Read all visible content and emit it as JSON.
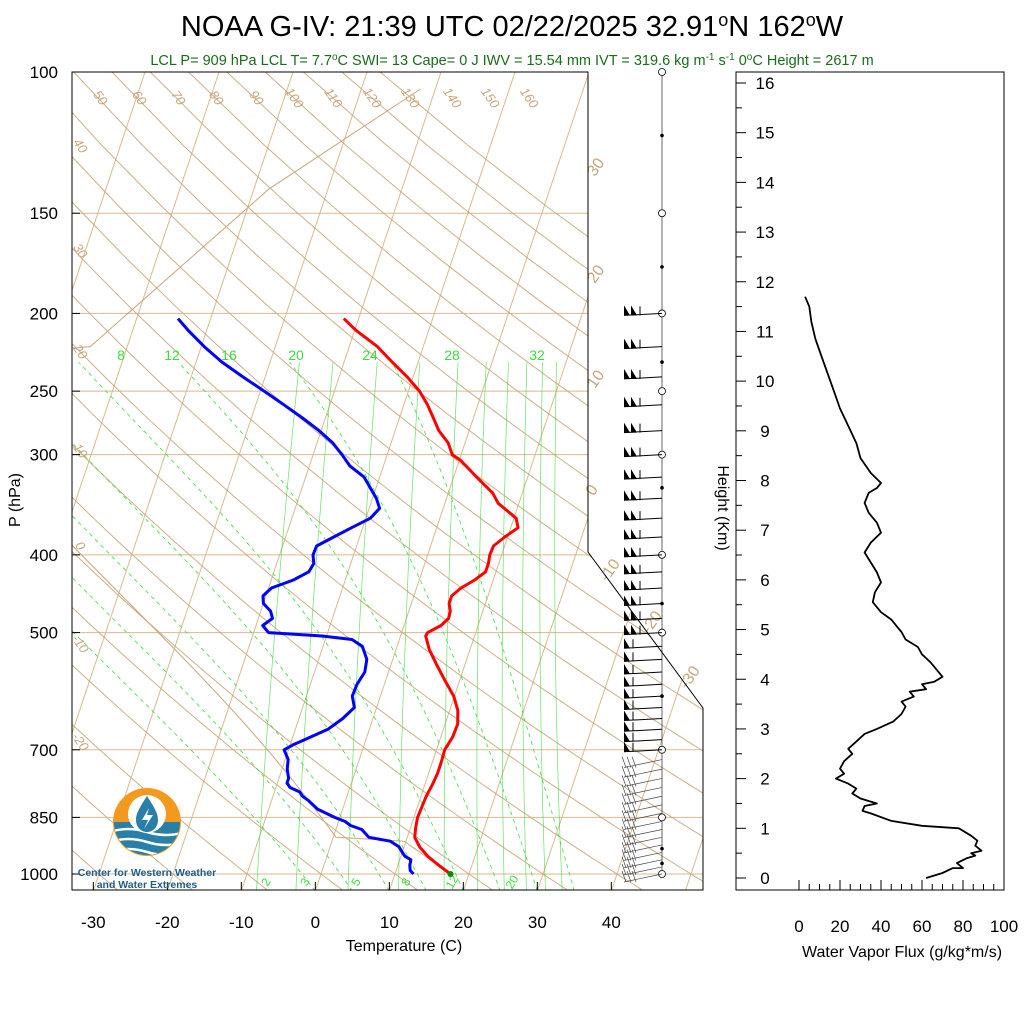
{
  "title": "NOAA G-IV: 21:39 UTC 02/22/2025",
  "location": "32.91°N 162°W",
  "location_parts": {
    "lat": "32.91",
    "lat_hem": "N",
    "lon": "162",
    "lon_hem": "W"
  },
  "subtitle_parts": {
    "a": "LCL P= 909 hPa  LCL T= 7.7",
    "b": "C  SWI= 13  Cape= 0 J  IWV = 15.54 mm  IVT = 319.6 kg m",
    "c": "s",
    "d": "  0",
    "e": "C Height = 2617 m",
    "sup_neg1": "-1"
  },
  "logo": {
    "line1": "Center for Western Weather",
    "line2": "and Water Extremes"
  },
  "colors": {
    "temperature": "#ff0000",
    "dewpoint": "#0000ff",
    "isotherm": "#d9b98f",
    "adiabat": "#c8a67c",
    "mixing_ratio": "#3ddc3d",
    "flux": "#000000",
    "logo_orange": "#f39a1e",
    "logo_blue": "#2a7fa8"
  },
  "chart_data": [
    {
      "type": "line",
      "chart": "skew-T log-P sounding",
      "xlabel": "Temperature (C)",
      "ylabel": "P (hPa)",
      "x_ticks": [
        -30,
        -20,
        -10,
        0,
        10,
        20,
        30,
        40
      ],
      "y_ticks": [
        100,
        150,
        200,
        250,
        300,
        400,
        500,
        700,
        850,
        1000
      ],
      "xlim": [
        -34,
        48
      ],
      "ylim": [
        1050,
        100
      ],
      "log_pressure": true,
      "skewed_isotherms": true,
      "isotherm_labels": [
        50,
        60,
        70,
        80,
        90,
        100,
        110,
        120,
        130,
        140,
        150,
        160,
        40,
        30,
        20,
        10,
        0,
        -10,
        -20
      ],
      "dry_adiabat_labels": [
        30,
        20,
        10,
        0,
        -10,
        -20,
        -30
      ],
      "mixing_ratio_labels_top": [
        8,
        12,
        16,
        20,
        24,
        28,
        32
      ],
      "mixing_ratio_labels_bottom": [
        2,
        3,
        5,
        8,
        12,
        20
      ],
      "series": [
        {
          "name": "Temperature",
          "points": [
            [
              1000,
              17.5
            ],
            [
              975,
              15.5
            ],
            [
              950,
              13.6
            ],
            [
              925,
              12.1
            ],
            [
              900,
              11.0
            ],
            [
              875,
              10.7
            ],
            [
              850,
              10.5
            ],
            [
              825,
              10.6
            ],
            [
              800,
              10.7
            ],
            [
              775,
              11.0
            ],
            [
              750,
              11.2
            ],
            [
              725,
              11.2
            ],
            [
              700,
              11.1
            ],
            [
              675,
              11.6
            ],
            [
              650,
              11.7
            ],
            [
              625,
              11.1
            ],
            [
              600,
              9.9
            ],
            [
              575,
              8.1
            ],
            [
              550,
              6.3
            ],
            [
              525,
              4.5
            ],
            [
              505,
              3.4
            ],
            [
              500,
              3.5
            ],
            [
              490,
              5.0
            ],
            [
              480,
              5.7
            ],
            [
              470,
              5.6
            ],
            [
              460,
              5.1
            ],
            [
              450,
              5.1
            ],
            [
              440,
              6.0
            ],
            [
              430,
              7.5
            ],
            [
              420,
              8.6
            ],
            [
              410,
              8.6
            ],
            [
              400,
              8.4
            ],
            [
              390,
              8.5
            ],
            [
              380,
              9.6
            ],
            [
              370,
              11.0
            ],
            [
              360,
              10.3
            ],
            [
              345,
              7.2
            ],
            [
              335,
              6.0
            ],
            [
              320,
              3.1
            ],
            [
              305,
              0.2
            ],
            [
              300,
              -1.2
            ],
            [
              290,
              -2.3
            ],
            [
              280,
              -4.1
            ],
            [
              270,
              -5.4
            ],
            [
              260,
              -6.8
            ],
            [
              250,
              -8.5
            ],
            [
              240,
              -10.8
            ],
            [
              230,
              -13.5
            ],
            [
              220,
              -16.2
            ],
            [
              210,
              -19.8
            ],
            [
              203,
              -22.0
            ]
          ]
        },
        {
          "name": "Dewpoint",
          "points": [
            [
              1000,
              12.5
            ],
            [
              990,
              11.9
            ],
            [
              975,
              11.6
            ],
            [
              960,
              11.5
            ],
            [
              950,
              10.5
            ],
            [
              925,
              9.3
            ],
            [
              910,
              7.9
            ],
            [
              900,
              4.8
            ],
            [
              880,
              3.5
            ],
            [
              870,
              1.8
            ],
            [
              860,
              0.9
            ],
            [
              850,
              -0.7
            ],
            [
              830,
              -3.4
            ],
            [
              810,
              -5.0
            ],
            [
              800,
              -6.0
            ],
            [
              790,
              -6.6
            ],
            [
              780,
              -8.1
            ],
            [
              770,
              -8.7
            ],
            [
              760,
              -8.7
            ],
            [
              740,
              -9.3
            ],
            [
              720,
              -9.6
            ],
            [
              700,
              -10.6
            ],
            [
              690,
              -9.6
            ],
            [
              680,
              -8.3
            ],
            [
              660,
              -5.6
            ],
            [
              640,
              -4.1
            ],
            [
              620,
              -3.0
            ],
            [
              600,
              -3.8
            ],
            [
              580,
              -3.7
            ],
            [
              560,
              -3.2
            ],
            [
              540,
              -3.5
            ],
            [
              520,
              -4.7
            ],
            [
              510,
              -6.4
            ],
            [
              505,
              -10.6
            ],
            [
              500,
              -18.0
            ],
            [
              490,
              -19.1
            ],
            [
              480,
              -18.1
            ],
            [
              470,
              -18.7
            ],
            [
              460,
              -20.0
            ],
            [
              450,
              -20.4
            ],
            [
              440,
              -19.6
            ],
            [
              430,
              -17.0
            ],
            [
              420,
              -15.3
            ],
            [
              410,
              -15.0
            ],
            [
              400,
              -15.5
            ],
            [
              390,
              -15.4
            ],
            [
              380,
              -13.5
            ],
            [
              370,
              -11.5
            ],
            [
              360,
              -9.4
            ],
            [
              350,
              -8.6
            ],
            [
              340,
              -9.5
            ],
            [
              320,
              -12.1
            ],
            [
              310,
              -14.5
            ],
            [
              300,
              -16.1
            ],
            [
              290,
              -17.9
            ],
            [
              280,
              -20.3
            ],
            [
              270,
              -23.1
            ],
            [
              260,
              -26.2
            ],
            [
              250,
              -29.5
            ],
            [
              240,
              -33.0
            ],
            [
              230,
              -36.5
            ],
            [
              220,
              -39.6
            ],
            [
              210,
              -42.5
            ],
            [
              203,
              -44.4
            ]
          ]
        }
      ],
      "wind_profile": {
        "pressure_range_hpa": [
          1000,
          200
        ],
        "note": "wind barbs plotted along right edge"
      }
    },
    {
      "type": "line",
      "chart": "water vapor flux profile",
      "xlabel": "Water Vapor Flux (g/kg*m/s)",
      "ylabel": "Height (Km)",
      "x_ticks": [
        0,
        20,
        40,
        60,
        80,
        100
      ],
      "y_ticks": [
        0,
        1,
        2,
        3,
        4,
        5,
        6,
        7,
        8,
        9,
        10,
        11,
        12,
        13,
        14,
        15,
        16
      ],
      "xlim": [
        0,
        100
      ],
      "ylim": [
        -0.3,
        16.3
      ],
      "series": [
        {
          "name": "Water Vapor Flux",
          "points": [
            [
              62,
              0.0
            ],
            [
              70,
              0.1
            ],
            [
              75,
              0.2
            ],
            [
              80,
              0.2
            ],
            [
              77,
              0.3
            ],
            [
              82,
              0.4
            ],
            [
              86,
              0.45
            ],
            [
              84,
              0.5
            ],
            [
              89,
              0.55
            ],
            [
              86,
              0.65
            ],
            [
              87,
              0.75
            ],
            [
              84,
              0.85
            ],
            [
              80,
              0.95
            ],
            [
              78,
              1.0
            ],
            [
              60,
              1.05
            ],
            [
              45,
              1.15
            ],
            [
              35,
              1.3
            ],
            [
              31,
              1.35
            ],
            [
              32,
              1.45
            ],
            [
              38,
              1.5
            ],
            [
              30,
              1.6
            ],
            [
              26,
              1.7
            ],
            [
              28,
              1.8
            ],
            [
              24,
              1.9
            ],
            [
              18,
              2.0
            ],
            [
              22,
              2.1
            ],
            [
              20,
              2.2
            ],
            [
              22,
              2.35
            ],
            [
              26,
              2.5
            ],
            [
              24,
              2.6
            ],
            [
              28,
              2.75
            ],
            [
              32,
              2.9
            ],
            [
              38,
              3.0
            ],
            [
              46,
              3.15
            ],
            [
              50,
              3.3
            ],
            [
              52,
              3.45
            ],
            [
              50,
              3.55
            ],
            [
              56,
              3.65
            ],
            [
              54,
              3.75
            ],
            [
              62,
              3.8
            ],
            [
              60,
              3.9
            ],
            [
              66,
              3.95
            ],
            [
              70,
              4.05
            ],
            [
              68,
              4.15
            ],
            [
              64,
              4.35
            ],
            [
              60,
              4.5
            ],
            [
              58,
              4.65
            ],
            [
              52,
              4.8
            ],
            [
              50,
              4.95
            ],
            [
              48,
              5.05
            ],
            [
              45,
              5.2
            ],
            [
              40,
              5.35
            ],
            [
              36,
              5.55
            ],
            [
              37,
              5.75
            ],
            [
              40,
              5.95
            ],
            [
              38,
              6.15
            ],
            [
              35,
              6.35
            ],
            [
              32,
              6.55
            ],
            [
              35,
              6.75
            ],
            [
              40,
              6.95
            ],
            [
              38,
              7.15
            ],
            [
              34,
              7.35
            ],
            [
              32,
              7.55
            ],
            [
              34,
              7.75
            ],
            [
              38,
              7.85
            ],
            [
              40,
              7.95
            ],
            [
              35,
              8.15
            ],
            [
              30,
              8.45
            ],
            [
              28,
              8.75
            ],
            [
              24,
              9.1
            ],
            [
              20,
              9.45
            ],
            [
              17,
              9.8
            ],
            [
              14,
              10.15
            ],
            [
              11,
              10.5
            ],
            [
              8,
              10.85
            ],
            [
              6,
              11.2
            ],
            [
              5,
              11.5
            ],
            [
              3,
              11.7
            ]
          ]
        }
      ]
    }
  ]
}
